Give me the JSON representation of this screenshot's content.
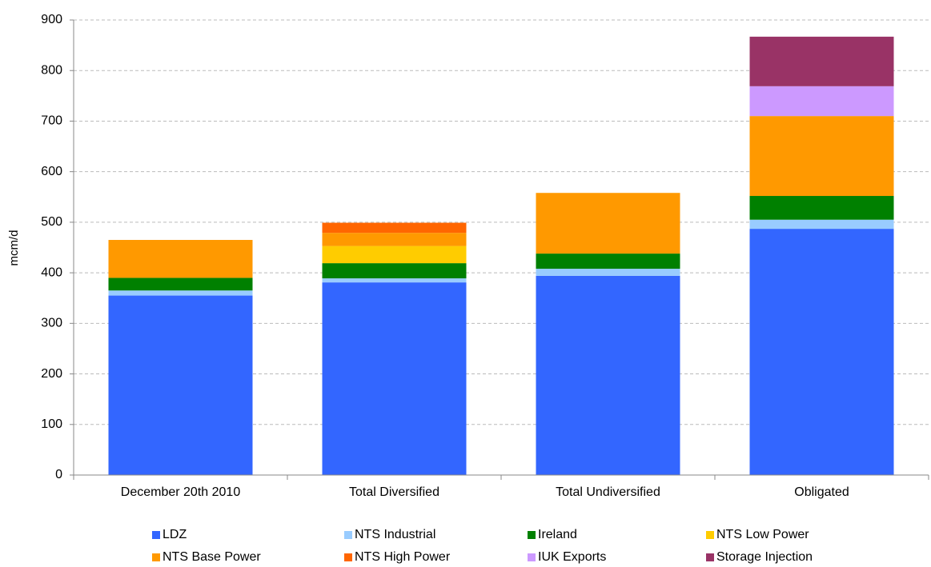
{
  "chart_data": {
    "type": "stacked_bar",
    "y_label": "mcm/d",
    "categories": [
      "December 20th 2010",
      "Total Diversified",
      "Total Undiversified",
      "Obligated"
    ],
    "series": [
      {
        "name": "LDZ",
        "color": "#3366ff",
        "values": [
          355,
          381,
          394,
          487
        ]
      },
      {
        "name": "NTS Industrial",
        "color": "#99ccff",
        "values": [
          10,
          8,
          14,
          18
        ]
      },
      {
        "name": "Ireland",
        "color": "#008000",
        "values": [
          25,
          30,
          30,
          47
        ]
      },
      {
        "name": "NTS Low Power",
        "color": "#ffcc00",
        "values": [
          0,
          34,
          0,
          0
        ]
      },
      {
        "name": "NTS Base Power",
        "color": "#ff9900",
        "values": [
          75,
          26,
          120,
          158
        ]
      },
      {
        "name": "NTS High Power",
        "color": "#ff6600",
        "values": [
          0,
          20,
          0,
          0
        ]
      },
      {
        "name": "IUK Exports",
        "color": "#cc99ff",
        "values": [
          0,
          0,
          0,
          59
        ]
      },
      {
        "name": "Storage Injection",
        "color": "#993366",
        "values": [
          0,
          0,
          0,
          98
        ]
      }
    ],
    "ylim": [
      0,
      900
    ],
    "yticks": [
      0,
      100,
      200,
      300,
      400,
      500,
      600,
      700,
      800,
      900
    ],
    "grid": true
  }
}
